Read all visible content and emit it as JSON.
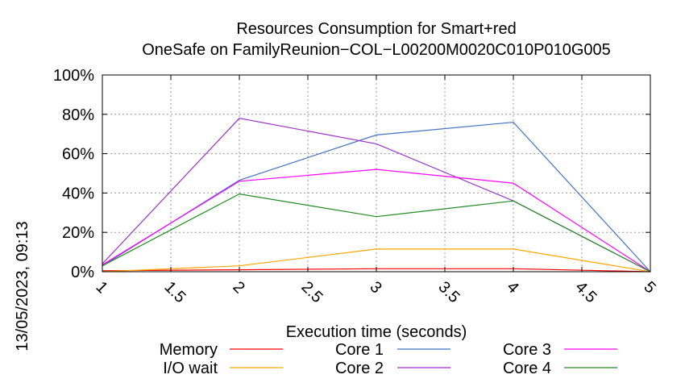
{
  "timestamp": "13/05/2023, 09:13",
  "chart_data": {
    "type": "line",
    "title": "Resources Consumption for Smart+red",
    "subtitle": "OneSafe on FamilyReunion−COL−L00200M0020C010P010G005",
    "xlabel": "Execution time (seconds)",
    "ylabel": "",
    "xlim": [
      1,
      5
    ],
    "ylim": [
      0,
      100
    ],
    "x_ticks": [
      "1",
      "1.5",
      "2",
      "2.5",
      "3",
      "3.5",
      "4",
      "4.5",
      "5"
    ],
    "x_tick_values": [
      1,
      1.5,
      2,
      2.5,
      3,
      3.5,
      4,
      4.5,
      5
    ],
    "y_ticks": [
      "0%",
      "20%",
      "40%",
      "60%",
      "80%",
      "100%"
    ],
    "y_tick_values": [
      0,
      20,
      40,
      60,
      80,
      100
    ],
    "grid": true,
    "legend_position": "bottom",
    "x": [
      1,
      2,
      3,
      4,
      5
    ],
    "series": [
      {
        "name": "Memory",
        "color": "#ff0000",
        "values": [
          0.5,
          1,
          1.5,
          1.5,
          0
        ]
      },
      {
        "name": "I/O wait",
        "color": "#ffa500",
        "values": [
          0,
          3,
          11.5,
          11.5,
          0
        ]
      },
      {
        "name": "Core 1",
        "color": "#4472c4",
        "values": [
          3,
          46.5,
          69.5,
          76,
          0
        ]
      },
      {
        "name": "Core 2",
        "color": "#9932cc",
        "values": [
          4,
          78,
          65,
          36,
          0
        ]
      },
      {
        "name": "Core 3",
        "color": "#ff00ff",
        "values": [
          3.5,
          46,
          52,
          45,
          0
        ]
      },
      {
        "name": "Core 4",
        "color": "#228b22",
        "values": [
          3,
          39.5,
          28,
          36,
          0
        ]
      }
    ]
  }
}
